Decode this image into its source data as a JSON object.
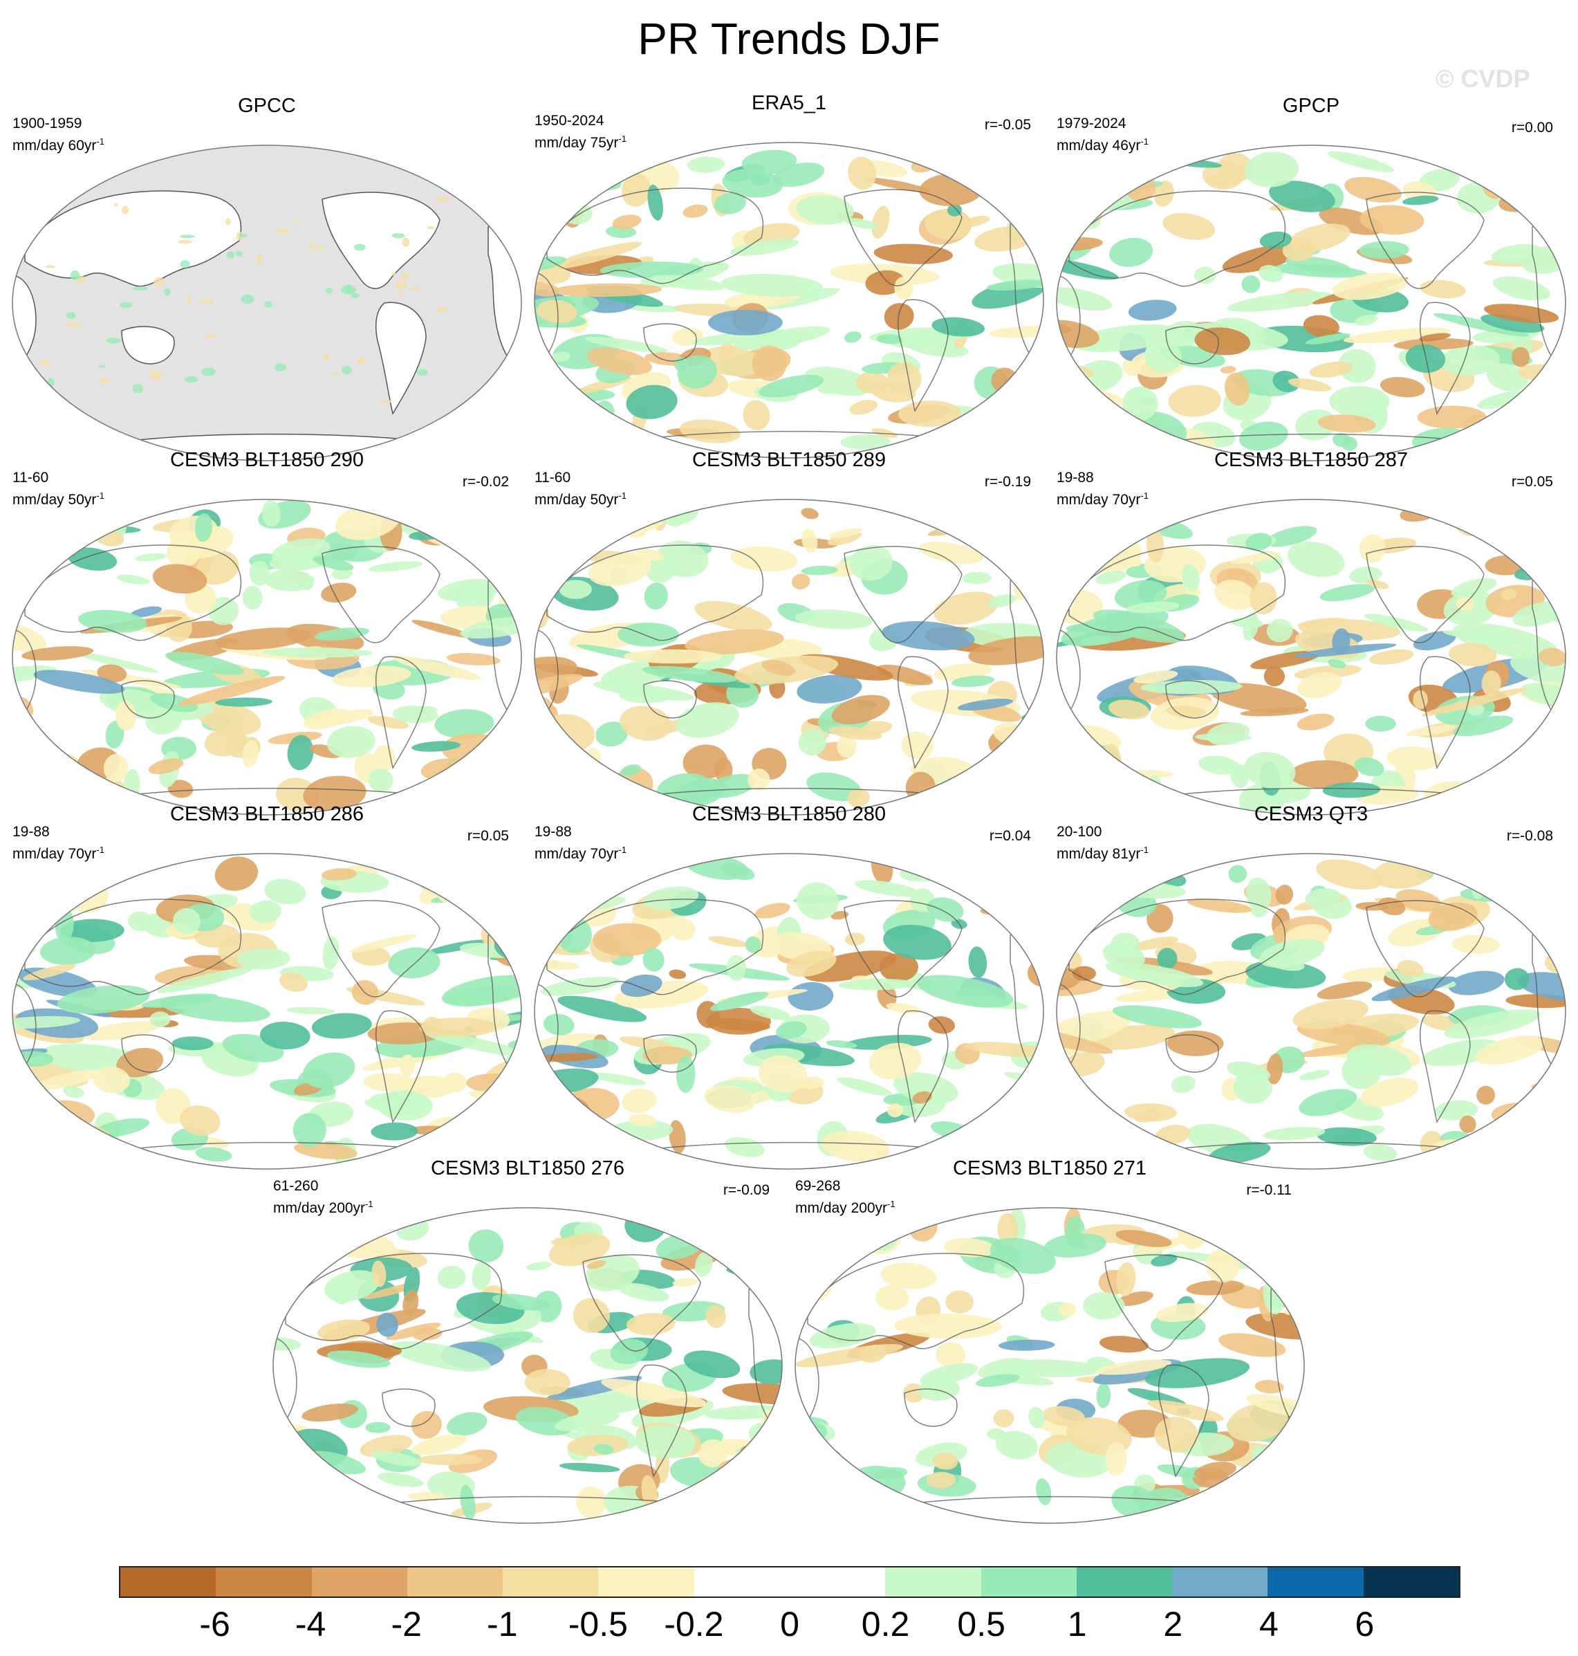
{
  "title": "PR Trends DJF",
  "watermark": "© CVDP",
  "panels": [
    {
      "title": "GPCC",
      "period": "1900-1959",
      "units_prefix": "mm/day 60yr",
      "units_exp": "-1",
      "r": ""
    },
    {
      "title": "ERA5_1",
      "period": "1950-2024",
      "units_prefix": "mm/day 75yr",
      "units_exp": "-1",
      "r": "r=-0.05"
    },
    {
      "title": "GPCP",
      "period": "1979-2024",
      "units_prefix": "mm/day 46yr",
      "units_exp": "-1",
      "r": "r=0.00"
    },
    {
      "title": "CESM3 BLT1850 290",
      "period": "11-60",
      "units_prefix": "mm/day 50yr",
      "units_exp": "-1",
      "r": "r=-0.02"
    },
    {
      "title": "CESM3 BLT1850 289",
      "period": "11-60",
      "units_prefix": "mm/day 50yr",
      "units_exp": "-1",
      "r": "r=-0.19"
    },
    {
      "title": "CESM3 BLT1850 287",
      "period": "19-88",
      "units_prefix": "mm/day 70yr",
      "units_exp": "-1",
      "r": "r=0.05"
    },
    {
      "title": "CESM3 BLT1850 286",
      "period": "19-88",
      "units_prefix": "mm/day 70yr",
      "units_exp": "-1",
      "r": "r=0.05"
    },
    {
      "title": "CESM3 BLT1850 280",
      "period": "19-88",
      "units_prefix": "mm/day 70yr",
      "units_exp": "-1",
      "r": "r=0.04"
    },
    {
      "title": "CESM3 QT3",
      "period": "20-100",
      "units_prefix": "mm/day 81yr",
      "units_exp": "-1",
      "r": "r=-0.08"
    },
    {
      "title": "CESM3 BLT1850 276",
      "period": "61-260",
      "units_prefix": "mm/day 200yr",
      "units_exp": "-1",
      "r": "r=-0.09"
    },
    {
      "title": "CESM3 BLT1850 271",
      "period": "69-268",
      "units_prefix": "mm/day 200yr",
      "units_exp": "-1",
      "r": "r=-0.11"
    }
  ],
  "colorbar": {
    "colors": [
      "#b5692a",
      "#cc8744",
      "#dda465",
      "#efc587",
      "#f4dea2",
      "#fcf2bf",
      "#ffffff",
      "#ffffff",
      "#c8f8c8",
      "#98eab6",
      "#52bf9c",
      "#72a9c9",
      "#0d6aa9",
      "#06334f"
    ],
    "labels": [
      "-6",
      "-4",
      "-2",
      "-1",
      "-0.5",
      "-0.2",
      "0",
      "0.2",
      "0.5",
      "1",
      "2",
      "4",
      "6"
    ]
  },
  "colors": {
    "missing": "#e3e3e3",
    "coast": "#555555",
    "map_border": "#777777"
  }
}
